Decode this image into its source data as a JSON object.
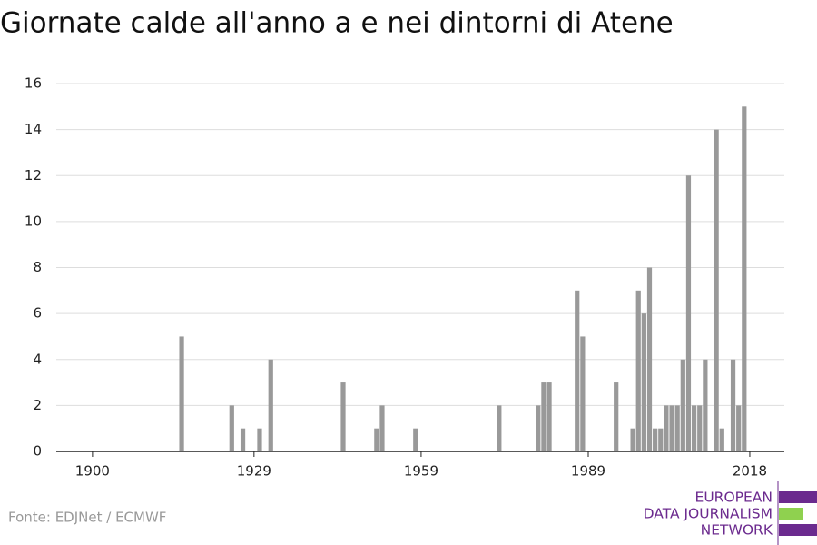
{
  "chart_data": {
    "type": "bar",
    "title": "Giornate calde all'anno a e nei dintorni di Atene",
    "x": [
      1916,
      1925,
      1927,
      1930,
      1932,
      1945,
      1951,
      1952,
      1958,
      1973,
      1980,
      1981,
      1982,
      1987,
      1988,
      1994,
      1997,
      1998,
      1999,
      2000,
      2001,
      2002,
      2003,
      2004,
      2005,
      2006,
      2007,
      2008,
      2009,
      2010,
      2012,
      2013,
      2015,
      2016,
      2017
    ],
    "values": [
      5,
      2,
      1,
      1,
      4,
      3,
      1,
      2,
      1,
      2,
      2,
      3,
      3,
      7,
      5,
      3,
      1,
      7,
      6,
      8,
      1,
      1,
      2,
      2,
      2,
      4,
      12,
      2,
      2,
      4,
      14,
      1,
      4,
      2,
      15
    ],
    "color": "#999999",
    "xlim": [
      1893.5,
      2024.2
    ],
    "xticks": [
      1900,
      1929,
      1959,
      1989,
      2018
    ],
    "ylim": [
      0,
      16
    ],
    "yticks": [
      0,
      2,
      4,
      6,
      8,
      10,
      12,
      14,
      16
    ],
    "grid": true,
    "source": "Fonte: EDJNet / ECMWF",
    "logo": [
      "EUROPEAN",
      "DATA JOURNALISM",
      "NETWORK"
    ]
  }
}
